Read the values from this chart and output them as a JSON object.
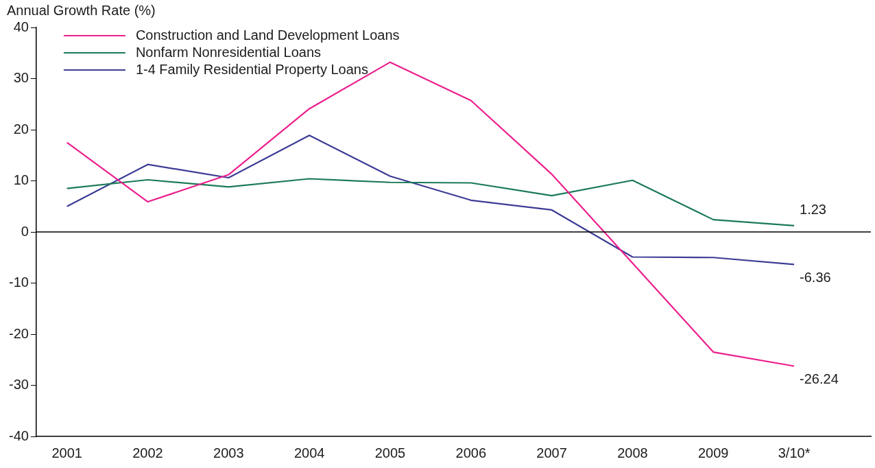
{
  "chart_data": {
    "type": "line",
    "ylabel": "Annual Growth Rate (%)",
    "categories": [
      "2001",
      "2002",
      "2003",
      "2004",
      "2005",
      "2006",
      "2007",
      "2008",
      "2009",
      "3/10*"
    ],
    "series": [
      {
        "name": "Construction and Land Development Loans",
        "color": "#ec1e8c",
        "values": [
          17.5,
          5.9,
          11.2,
          24.1,
          33.2,
          25.7,
          11.3,
          -6.1,
          -23.5,
          -26.24
        ],
        "value_labels": [
          null,
          null,
          null,
          null,
          null,
          null,
          null,
          null,
          null,
          "-26.24"
        ]
      },
      {
        "name": "Nonfarm Nonresidential Loans",
        "color": "#1b7a55",
        "values": [
          8.5,
          10.2,
          8.8,
          10.4,
          9.7,
          9.6,
          7.1,
          10.1,
          2.4,
          1.23
        ],
        "value_labels": [
          null,
          null,
          null,
          null,
          null,
          null,
          null,
          null,
          null,
          "1.23"
        ]
      },
      {
        "name": "1-4 Family Residential Property Loans",
        "color": "#3c3c96",
        "values": [
          5.0,
          13.2,
          10.6,
          18.9,
          10.9,
          6.2,
          4.3,
          -4.9,
          -5.0,
          -6.36
        ],
        "value_labels": [
          null,
          null,
          null,
          null,
          null,
          null,
          null,
          null,
          null,
          "-6.36"
        ]
      }
    ],
    "ylim": [
      -40,
      40
    ],
    "yticks": [
      -40,
      -30,
      -20,
      -10,
      0,
      10,
      20,
      30,
      40
    ],
    "ref_lines": [
      {
        "axis": "y",
        "value": 0,
        "color": "#000000"
      }
    ],
    "grid": false,
    "legend": "top left",
    "marker": "none",
    "line_style": "solid"
  }
}
